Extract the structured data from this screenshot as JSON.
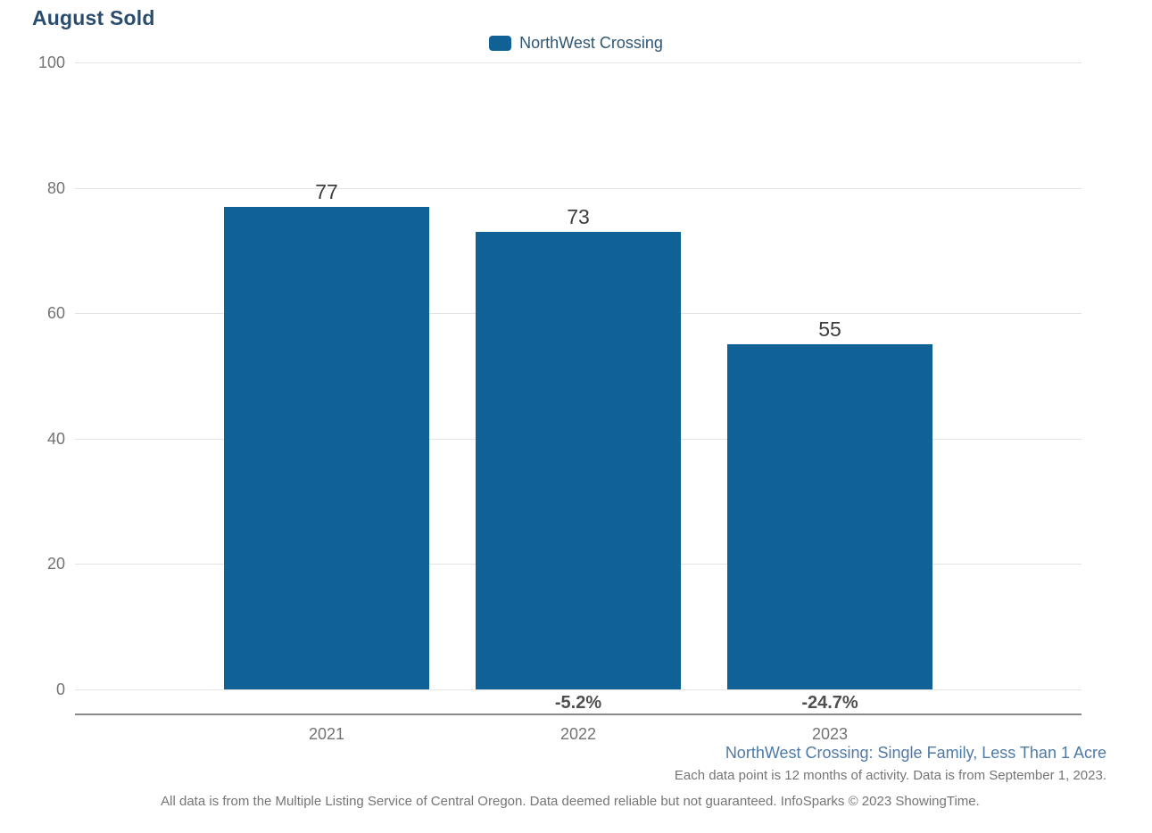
{
  "chart_data": {
    "type": "bar",
    "title": "August Sold",
    "legend": [
      "NorthWest Crossing"
    ],
    "legend_position": "top-center",
    "categories": [
      "2021",
      "2022",
      "2023"
    ],
    "values": [
      77,
      73,
      55
    ],
    "data_labels": [
      "77",
      "73",
      "55"
    ],
    "pct_change": [
      null,
      "-5.2%",
      "-24.7%"
    ],
    "xlabel": "",
    "ylabel": "",
    "yticks": [
      0,
      20,
      40,
      60,
      80,
      100
    ],
    "ylim": [
      0,
      100
    ],
    "grid": "horizontal",
    "colors": {
      "bar-fill": "#0f6196",
      "title-text": "#2b4d6d",
      "legend-text": "#2f5572",
      "axis-label": "#737373",
      "value-label": "#3d3d3d",
      "pct-label": "#4f4f4f",
      "gridline": "#e4e4e4",
      "axis-line": "#8a8a8a",
      "series-description": "#4e7aa7",
      "footnote": "#757575"
    }
  },
  "footer": {
    "series_description": "NorthWest Crossing: Single Family, Less Than 1 Acre",
    "data_note": "Each data point is 12 months of activity. Data is from September 1, 2023.",
    "disclaimer": "All data is from the Multiple Listing Service of Central Oregon. Data deemed reliable but not guaranteed. InfoSparks © 2023 ShowingTime."
  }
}
